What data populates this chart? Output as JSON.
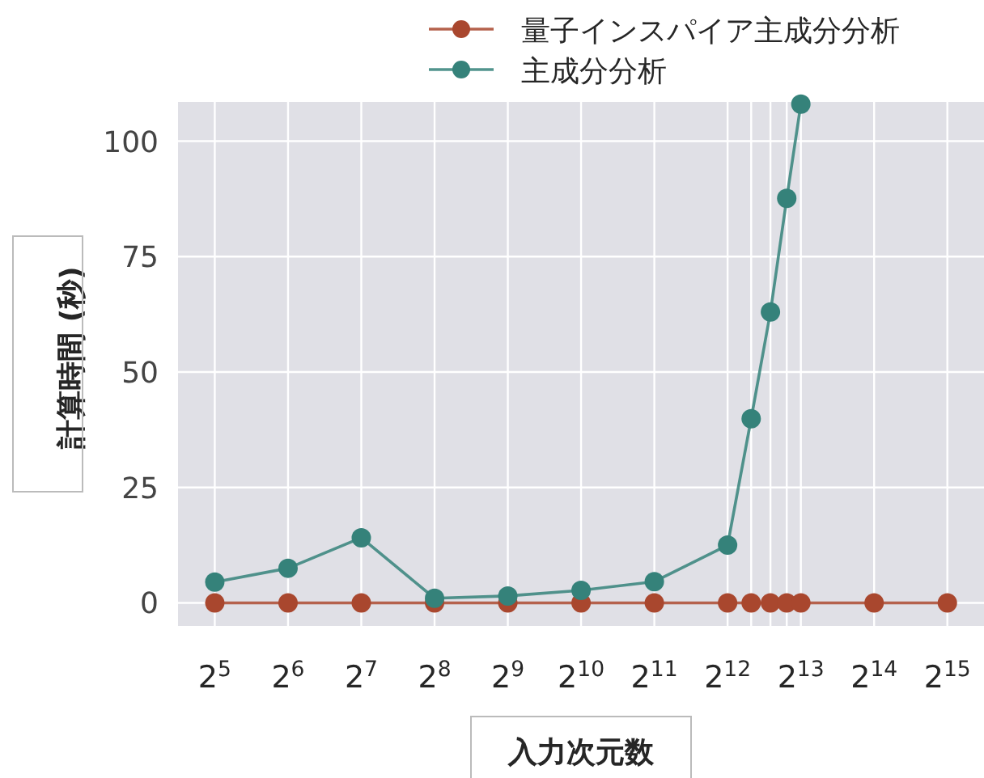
{
  "chart_data": {
    "type": "line",
    "xlabel": "入力次元数",
    "ylabel": "計算時間 (秒)",
    "log": "x",
    "x": [
      32,
      64,
      128,
      256,
      512,
      1024,
      2048,
      4096,
      5120,
      6144,
      7168,
      8192,
      16384,
      32768
    ],
    "series": [
      {
        "name": "量子インスパイア主成分分析",
        "color": "#a9472e",
        "values": [
          0,
          0,
          0,
          0,
          0,
          0,
          0,
          0,
          0,
          0,
          0,
          0,
          0,
          0
        ]
      },
      {
        "name": "主成分分析",
        "color": "#35827a",
        "values": [
          4.5,
          7.5,
          14.1,
          1.0,
          1.5,
          2.7,
          4.6,
          12.5,
          39.9,
          63.0,
          87.6,
          108,
          null,
          null
        ]
      }
    ],
    "xlim": [
      22.6,
      46341
    ],
    "xticks": [
      {
        "value": 32,
        "label": "2$^{5}$"
      },
      {
        "value": 64,
        "label": "2$^{6}$"
      },
      {
        "value": 128,
        "label": "2$^{7}$"
      },
      {
        "value": 256,
        "label": "2$^{8}$"
      },
      {
        "value": 512,
        "label": "2$^{9}$"
      },
      {
        "value": 1024,
        "label": "2$^{10}$"
      },
      {
        "value": 2048,
        "label": "2$^{11}$"
      },
      {
        "value": 4096,
        "label": "2$^{12}$"
      },
      {
        "value": 5120,
        "label": null
      },
      {
        "value": 6144,
        "label": null
      },
      {
        "value": 7168,
        "label": null
      },
      {
        "value": 8192,
        "label": "2$^{13}$"
      },
      {
        "value": 16384,
        "label": "2$^{14}$"
      },
      {
        "value": 32768,
        "label": "2$^{15}$"
      }
    ],
    "ylim": [
      -5,
      108.5
    ],
    "yticks": [
      0,
      25,
      50,
      75,
      100
    ],
    "grid": true,
    "legend": "top right",
    "marker": "circle",
    "line_style": "solid"
  }
}
